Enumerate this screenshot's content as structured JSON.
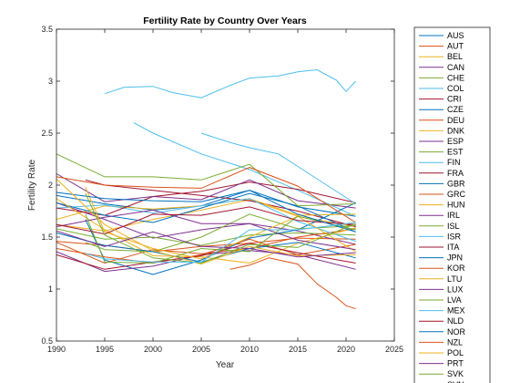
{
  "chart_data": {
    "type": "line",
    "title": "Fertility Rate by Country Over Years",
    "xlabel": "Year",
    "ylabel": "Fertility Rate",
    "xlim": [
      1990,
      2025
    ],
    "ylim": [
      0.5,
      3.5
    ],
    "xticks": [
      1990,
      1995,
      2000,
      2005,
      2010,
      2015,
      2020,
      2025
    ],
    "yticks": [
      0.5,
      1,
      1.5,
      2,
      2.5,
      3,
      3.5
    ],
    "grid": false,
    "legend_position": "outside-right",
    "series": [
      {
        "name": "AUS",
        "color": "#0072bd",
        "x": [
          1990,
          1995,
          2000,
          2005,
          2010,
          2015,
          2021
        ],
        "values": [
          1.9,
          1.82,
          1.76,
          1.8,
          1.95,
          1.79,
          1.7
        ]
      },
      {
        "name": "AUT",
        "color": "#d95319",
        "x": [
          1990,
          1995,
          2000,
          2005,
          2010,
          2015,
          2021
        ],
        "values": [
          1.46,
          1.42,
          1.36,
          1.41,
          1.44,
          1.49,
          1.48
        ]
      },
      {
        "name": "BEL",
        "color": "#edb120",
        "x": [
          1990,
          1995,
          2000,
          2005,
          2010,
          2015,
          2021
        ],
        "values": [
          1.62,
          1.56,
          1.67,
          1.76,
          1.86,
          1.7,
          1.6
        ]
      },
      {
        "name": "CAN",
        "color": "#7e2f8e",
        "x": [
          1990,
          1995,
          2000,
          2005,
          2010,
          2015,
          2021
        ],
        "values": [
          1.83,
          1.67,
          1.49,
          1.57,
          1.63,
          1.56,
          1.43
        ]
      },
      {
        "name": "CHE",
        "color": "#77ac30",
        "x": [
          1990,
          1995,
          2000,
          2005,
          2010,
          2015,
          2021
        ],
        "values": [
          1.58,
          1.48,
          1.5,
          1.42,
          1.52,
          1.54,
          1.52
        ]
      },
      {
        "name": "COL",
        "color": "#4dbeee",
        "x": [
          1998,
          2000,
          2005,
          2010,
          2015,
          2021
        ],
        "values": [
          2.6,
          2.5,
          2.3,
          2.15,
          1.95,
          1.7
        ]
      },
      {
        "name": "CRI",
        "color": "#a2142f",
        "x": [
          1993,
          1995,
          2000,
          2005,
          2010,
          2015,
          2021
        ],
        "values": [
          2.05,
          2.0,
          1.95,
          1.9,
          1.85,
          1.75,
          1.6
        ]
      },
      {
        "name": "CZE",
        "color": "#0072bd",
        "x": [
          1993,
          1995,
          2000,
          2005,
          2010,
          2015,
          2021
        ],
        "values": [
          1.67,
          1.28,
          1.14,
          1.28,
          1.49,
          1.57,
          1.83
        ]
      },
      {
        "name": "DEU",
        "color": "#d95319",
        "x": [
          1990,
          1995,
          2000,
          2005,
          2010,
          2015,
          2021
        ],
        "values": [
          1.45,
          1.25,
          1.38,
          1.34,
          1.39,
          1.5,
          1.58
        ]
      },
      {
        "name": "DNK",
        "color": "#edb120",
        "x": [
          1990,
          1995,
          2000,
          2005,
          2010,
          2015,
          2021
        ],
        "values": [
          1.67,
          1.8,
          1.77,
          1.8,
          1.87,
          1.71,
          1.72
        ]
      },
      {
        "name": "ESP",
        "color": "#7e2f8e",
        "x": [
          1990,
          1995,
          2000,
          2005,
          2010,
          2015,
          2021
        ],
        "values": [
          1.36,
          1.17,
          1.22,
          1.33,
          1.37,
          1.33,
          1.19
        ]
      },
      {
        "name": "EST",
        "color": "#77ac30",
        "x": [
          1993,
          1995,
          2000,
          2005,
          2010,
          2015,
          2021
        ],
        "values": [
          1.45,
          1.38,
          1.36,
          1.5,
          1.72,
          1.58,
          1.61
        ]
      },
      {
        "name": "FIN",
        "color": "#4dbeee",
        "x": [
          1990,
          1995,
          2000,
          2005,
          2010,
          2015,
          2021
        ],
        "values": [
          1.78,
          1.81,
          1.73,
          1.8,
          1.87,
          1.65,
          1.46
        ]
      },
      {
        "name": "FRA",
        "color": "#a2142f",
        "x": [
          1990,
          1995,
          2000,
          2005,
          2010,
          2015,
          2021
        ],
        "values": [
          1.78,
          1.71,
          1.89,
          1.94,
          2.03,
          1.96,
          1.83
        ]
      },
      {
        "name": "GBR",
        "color": "#0072bd",
        "x": [
          1990,
          1995,
          2000,
          2005,
          2010,
          2015,
          2021
        ],
        "values": [
          1.83,
          1.71,
          1.64,
          1.78,
          1.92,
          1.8,
          1.55
        ]
      },
      {
        "name": "GRC",
        "color": "#d95319",
        "x": [
          1990,
          1995,
          2000,
          2005,
          2010,
          2015,
          2021
        ],
        "values": [
          1.39,
          1.31,
          1.25,
          1.33,
          1.48,
          1.33,
          1.43
        ]
      },
      {
        "name": "HUN",
        "color": "#edb120",
        "x": [
          1990,
          1995,
          2000,
          2005,
          2010,
          2015,
          2021
        ],
        "values": [
          1.87,
          1.57,
          1.32,
          1.31,
          1.25,
          1.44,
          1.59
        ]
      },
      {
        "name": "IRL",
        "color": "#7e2f8e",
        "x": [
          1990,
          1995,
          2000,
          2005,
          2010,
          2015,
          2021
        ],
        "values": [
          2.11,
          1.84,
          1.89,
          1.86,
          2.05,
          1.85,
          1.78
        ]
      },
      {
        "name": "ISL",
        "color": "#77ac30",
        "x": [
          1990,
          1995,
          2000,
          2005,
          2010,
          2015,
          2021
        ],
        "values": [
          2.3,
          2.08,
          2.08,
          2.05,
          2.2,
          1.8,
          1.82
        ]
      },
      {
        "name": "ISR",
        "color": "#4dbeee",
        "x": [
          1995,
          1997,
          2000,
          2002,
          2005,
          2008,
          2010,
          2013,
          2015,
          2017,
          2019,
          2020,
          2021
        ],
        "values": [
          2.88,
          2.94,
          2.95,
          2.89,
          2.84,
          2.96,
          3.03,
          3.05,
          3.09,
          3.11,
          3.01,
          2.9,
          3.0
        ]
      },
      {
        "name": "ITA",
        "color": "#a2142f",
        "x": [
          1990,
          1995,
          2000,
          2005,
          2010,
          2015,
          2021
        ],
        "values": [
          1.33,
          1.19,
          1.26,
          1.32,
          1.44,
          1.35,
          1.25
        ]
      },
      {
        "name": "JPN",
        "color": "#0072bd",
        "x": [
          1990,
          1995,
          2000,
          2005,
          2010,
          2015,
          2021
        ],
        "values": [
          1.54,
          1.42,
          1.36,
          1.26,
          1.39,
          1.45,
          1.3
        ]
      },
      {
        "name": "KOR",
        "color": "#d95319",
        "x": [
          2008,
          2010,
          2012,
          2015,
          2017,
          2019,
          2020,
          2021
        ],
        "values": [
          1.19,
          1.23,
          1.3,
          1.24,
          1.05,
          0.92,
          0.84,
          0.81
        ]
      },
      {
        "name": "LTU",
        "color": "#edb120",
        "x": [
          1993,
          1995,
          2000,
          2005,
          2010,
          2015,
          2021
        ],
        "values": [
          1.98,
          1.55,
          1.39,
          1.29,
          1.5,
          1.7,
          1.36
        ]
      },
      {
        "name": "LUX",
        "color": "#7e2f8e",
        "x": [
          1990,
          1995,
          2000,
          2005,
          2010,
          2015,
          2021
        ],
        "values": [
          1.6,
          1.69,
          1.76,
          1.63,
          1.63,
          1.47,
          1.38
        ]
      },
      {
        "name": "LVA",
        "color": "#77ac30",
        "x": [
          1993,
          1995,
          2000,
          2005,
          2010,
          2015,
          2021
        ],
        "values": [
          1.72,
          1.26,
          1.25,
          1.39,
          1.36,
          1.7,
          1.57
        ]
      },
      {
        "name": "MEX",
        "color": "#4dbeee",
        "x": [
          2005,
          2008,
          2010,
          2013,
          2015,
          2018,
          2021
        ],
        "values": [
          2.5,
          2.41,
          2.36,
          2.3,
          2.18,
          2.0,
          1.82
        ]
      },
      {
        "name": "NLD",
        "color": "#a2142f",
        "x": [
          1990,
          1995,
          2000,
          2005,
          2010,
          2015,
          2021
        ],
        "values": [
          1.62,
          1.53,
          1.72,
          1.71,
          1.79,
          1.66,
          1.62
        ]
      },
      {
        "name": "NOR",
        "color": "#0072bd",
        "x": [
          1990,
          1995,
          2000,
          2005,
          2010,
          2015,
          2021
        ],
        "values": [
          1.93,
          1.87,
          1.85,
          1.84,
          1.95,
          1.72,
          1.55
        ]
      },
      {
        "name": "NZL",
        "color": "#d95319",
        "x": [
          1990,
          1995,
          2000,
          2005,
          2010,
          2015,
          2021
        ],
        "values": [
          2.08,
          2.0,
          1.98,
          1.97,
          2.17,
          1.99,
          1.64
        ]
      },
      {
        "name": "POL",
        "color": "#edb120",
        "x": [
          1990,
          1995,
          2000,
          2005,
          2010,
          2015,
          2021
        ],
        "values": [
          2.06,
          1.62,
          1.37,
          1.24,
          1.41,
          1.32,
          1.33
        ]
      },
      {
        "name": "PRT",
        "color": "#7e2f8e",
        "x": [
          1990,
          1995,
          2000,
          2005,
          2010,
          2015,
          2021
        ],
        "values": [
          1.56,
          1.41,
          1.55,
          1.41,
          1.39,
          1.31,
          1.35
        ]
      },
      {
        "name": "SVK",
        "color": "#77ac30",
        "x": [
          1993,
          1995,
          2000,
          2005,
          2010,
          2015,
          2021
        ],
        "values": [
          1.92,
          1.52,
          1.3,
          1.25,
          1.43,
          1.4,
          1.63
        ]
      },
      {
        "name": "SVN",
        "color": "#4dbeee",
        "x": [
          1993,
          1995,
          2000,
          2005,
          2010,
          2015,
          2021
        ],
        "values": [
          1.34,
          1.29,
          1.26,
          1.26,
          1.57,
          1.57,
          1.64
        ]
      }
    ]
  }
}
